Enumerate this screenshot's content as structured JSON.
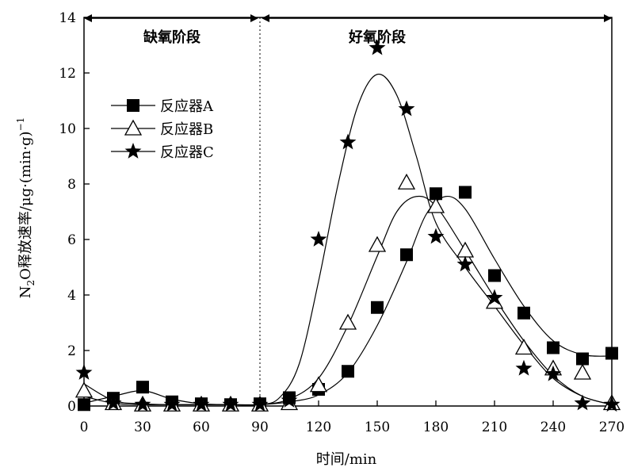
{
  "chart_data": {
    "type": "scatter",
    "title": "",
    "xlabel": "时间/min",
    "ylabel_main": "N",
    "ylabel_sub": "2",
    "ylabel_rest": "O释放速率/μg·(min·g)",
    "ylabel_sup": "−1",
    "xlim": [
      0,
      270
    ],
    "ylim": [
      0,
      14
    ],
    "x_ticks": [
      0,
      30,
      60,
      90,
      120,
      150,
      180,
      210,
      240,
      270
    ],
    "y_ticks": [
      0,
      2,
      4,
      6,
      8,
      10,
      12,
      14
    ],
    "phases": [
      {
        "label": "缺氧阶段",
        "from": 0,
        "to": 90
      },
      {
        "label": "好氧阶段",
        "from": 90,
        "to": 270
      }
    ],
    "legend_position": "left-middle",
    "series": [
      {
        "name": "反应器A",
        "marker": "square",
        "points": [
          [
            0,
            0.05
          ],
          [
            15,
            0.28
          ],
          [
            30,
            0.68
          ],
          [
            45,
            0.15
          ],
          [
            60,
            0.08
          ],
          [
            75,
            0.05
          ],
          [
            90,
            0.08
          ],
          [
            105,
            0.3
          ],
          [
            120,
            0.6
          ],
          [
            135,
            1.25
          ],
          [
            150,
            3.55
          ],
          [
            165,
            5.45
          ],
          [
            180,
            7.65
          ],
          [
            195,
            7.7
          ],
          [
            210,
            4.7
          ],
          [
            225,
            3.35
          ],
          [
            240,
            2.1
          ],
          [
            255,
            1.7
          ],
          [
            270,
            1.9
          ]
        ],
        "curve": [
          [
            0,
            0.1
          ],
          [
            15,
            0.35
          ],
          [
            30,
            0.55
          ],
          [
            45,
            0.25
          ],
          [
            60,
            0.08
          ],
          [
            75,
            0.05
          ],
          [
            90,
            0.05
          ],
          [
            105,
            0.15
          ],
          [
            120,
            0.4
          ],
          [
            135,
            1.2
          ],
          [
            150,
            2.9
          ],
          [
            165,
            5.2
          ],
          [
            175,
            6.9
          ],
          [
            185,
            7.55
          ],
          [
            195,
            7.1
          ],
          [
            210,
            5.3
          ],
          [
            225,
            3.6
          ],
          [
            240,
            2.35
          ],
          [
            255,
            1.85
          ],
          [
            270,
            1.8
          ]
        ]
      },
      {
        "name": "反应器B",
        "marker": "triangle",
        "points": [
          [
            0,
            0.55
          ],
          [
            15,
            0.1
          ],
          [
            30,
            0.05
          ],
          [
            45,
            0.05
          ],
          [
            60,
            0.05
          ],
          [
            75,
            0.05
          ],
          [
            90,
            0.05
          ],
          [
            105,
            0.1
          ],
          [
            120,
            0.75
          ],
          [
            135,
            3.0
          ],
          [
            150,
            5.8
          ],
          [
            165,
            8.05
          ],
          [
            180,
            7.2
          ],
          [
            195,
            5.6
          ],
          [
            210,
            3.75
          ],
          [
            225,
            2.1
          ],
          [
            240,
            1.35
          ],
          [
            255,
            1.2
          ],
          [
            270,
            0.1
          ]
        ],
        "curve": [
          [
            0,
            0.35
          ],
          [
            15,
            0.1
          ],
          [
            30,
            0.05
          ],
          [
            45,
            0.05
          ],
          [
            60,
            0.05
          ],
          [
            75,
            0.05
          ],
          [
            90,
            0.05
          ],
          [
            105,
            0.25
          ],
          [
            120,
            1.0
          ],
          [
            135,
            2.9
          ],
          [
            150,
            5.4
          ],
          [
            160,
            7.0
          ],
          [
            170,
            7.55
          ],
          [
            180,
            7.2
          ],
          [
            195,
            5.6
          ],
          [
            210,
            3.9
          ],
          [
            225,
            2.35
          ],
          [
            240,
            1.1
          ],
          [
            255,
            0.35
          ],
          [
            270,
            0.05
          ]
        ]
      },
      {
        "name": "反应器C",
        "marker": "star",
        "points": [
          [
            0,
            1.2
          ],
          [
            15,
            0.1
          ],
          [
            30,
            0.05
          ],
          [
            45,
            0.05
          ],
          [
            60,
            0.05
          ],
          [
            75,
            0.05
          ],
          [
            90,
            0.05
          ],
          [
            105,
            0.2
          ],
          [
            120,
            6.0
          ],
          [
            135,
            9.5
          ],
          [
            150,
            12.9
          ],
          [
            165,
            10.7
          ],
          [
            180,
            6.1
          ],
          [
            195,
            5.1
          ],
          [
            210,
            3.9
          ],
          [
            225,
            1.35
          ],
          [
            240,
            1.15
          ],
          [
            255,
            0.1
          ],
          [
            270,
            0.05
          ]
        ],
        "curve": [
          [
            0,
            0.8
          ],
          [
            15,
            0.2
          ],
          [
            30,
            0.08
          ],
          [
            45,
            0.05
          ],
          [
            60,
            0.05
          ],
          [
            75,
            0.05
          ],
          [
            90,
            0.05
          ],
          [
            100,
            0.3
          ],
          [
            110,
            1.5
          ],
          [
            120,
            4.5
          ],
          [
            130,
            8.0
          ],
          [
            140,
            10.8
          ],
          [
            150,
            11.95
          ],
          [
            160,
            11.2
          ],
          [
            170,
            9.0
          ],
          [
            180,
            6.6
          ],
          [
            195,
            5.0
          ],
          [
            210,
            3.6
          ],
          [
            225,
            2.2
          ],
          [
            240,
            1.0
          ],
          [
            255,
            0.35
          ],
          [
            270,
            0.05
          ]
        ]
      }
    ]
  }
}
